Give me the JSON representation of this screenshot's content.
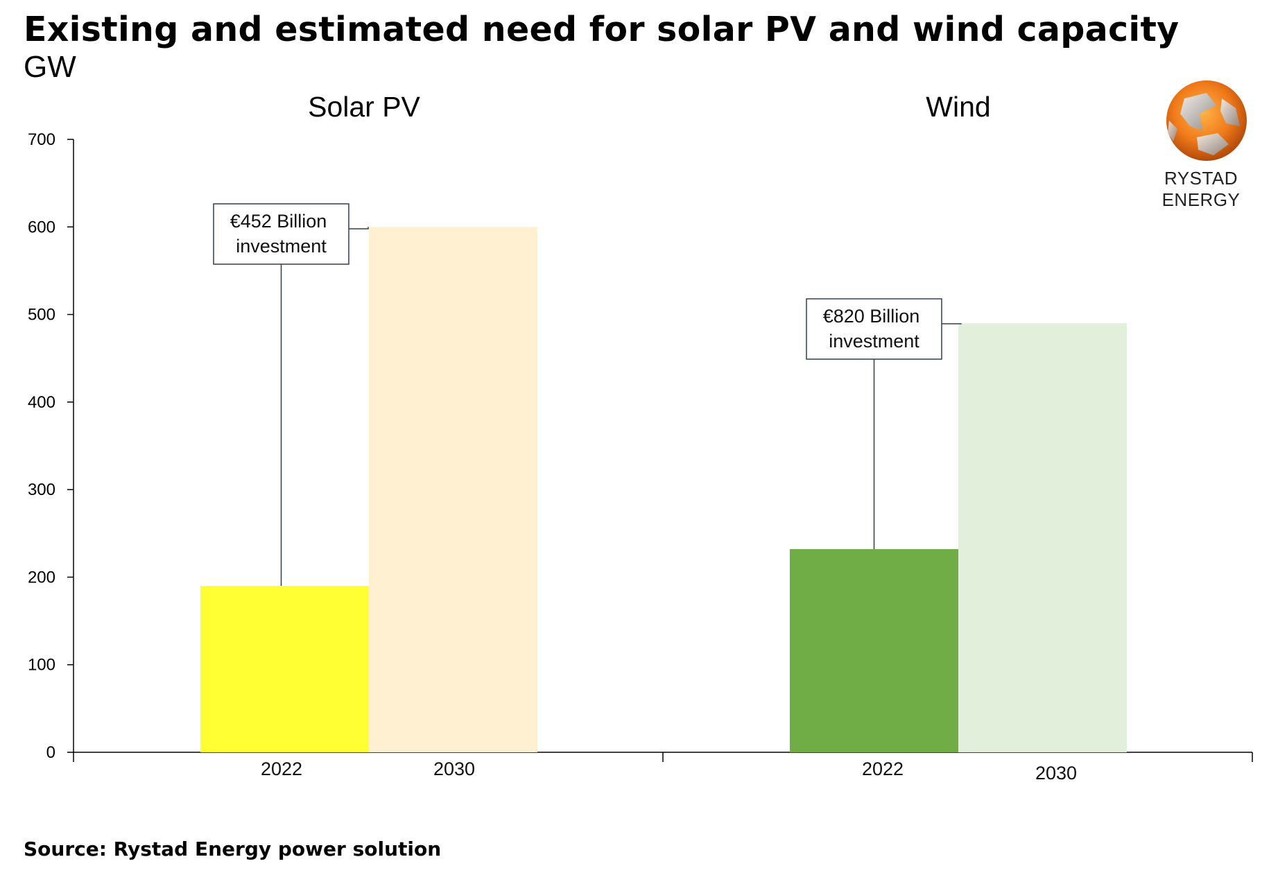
{
  "title": "Existing and estimated need for solar PV and wind capacity",
  "unit": "GW",
  "source": "Source: Rystad Energy power solution",
  "logo": {
    "text": "RYSTAD ENERGY",
    "icon": "globe-icon"
  },
  "colors": {
    "solar_2022": "#FFFF33",
    "solar_2030": "#FFF0D1",
    "wind_2022": "#70AD47",
    "wind_2030": "#E2EFDA",
    "axis": "#000000",
    "callout_border": "#2F4050"
  },
  "chart_data": {
    "type": "bar",
    "ylim": [
      0,
      700
    ],
    "yticks": [
      "0",
      "100",
      "200",
      "300",
      "400",
      "500",
      "600",
      "700"
    ],
    "grid": false,
    "panels": [
      {
        "title": "Solar PV",
        "categories": [
          "2022",
          "2030"
        ],
        "values": [
          190,
          600
        ],
        "annotation": {
          "line1": "€452 Billion",
          "line2": "investment"
        }
      },
      {
        "title": "Wind",
        "categories": [
          "2022",
          "2030"
        ],
        "values": [
          232,
          490
        ],
        "annotation": {
          "line1": "€820 Billion",
          "line2": "investment"
        }
      }
    ]
  }
}
